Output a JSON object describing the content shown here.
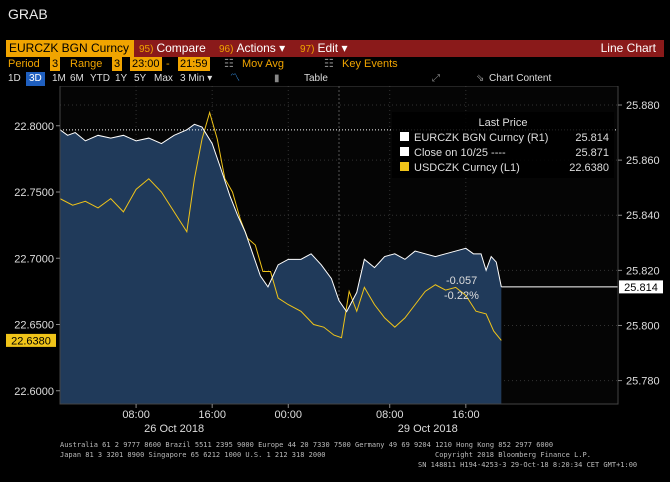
{
  "header": {
    "title": "GRAB"
  },
  "toolbar": {
    "ticker": "EURCZK BGN Curncy",
    "compare": {
      "num": "95)",
      "label": "Compare"
    },
    "actions": {
      "num": "96)",
      "label": "Actions ▾"
    },
    "edit": {
      "num": "97)",
      "label": "Edit ▾"
    },
    "view": "Line Chart"
  },
  "settings": {
    "period_label": "Period",
    "period_value": "3",
    "range_label": "Range",
    "range_value": "3",
    "range_start": "23:00",
    "range_sep": "-",
    "range_end": "21:59",
    "mov_avg": "Mov Avg",
    "key_events": "Key Events"
  },
  "timebar": {
    "spans": [
      "1D",
      "3D",
      "1M",
      "6M",
      "YTD",
      "1Y",
      "5Y",
      "Max"
    ],
    "selected": "3D",
    "interval": "3 Min ▾",
    "table": "Table",
    "chart_content": "Chart Content"
  },
  "legend": {
    "title": "Last Price",
    "rows": [
      {
        "label": "EURCZK BGN Curncy  (R1)",
        "value": "25.814",
        "color": "#ffffff"
      },
      {
        "label": "Close on 10/25 ----",
        "value": "25.871",
        "color": "#ffffff"
      },
      {
        "label": "USDCZK Curncy  (L1)",
        "value": "22.6380",
        "color": "#f0c419"
      }
    ]
  },
  "annotations": {
    "change": "-0.057",
    "change_pct": "-0.22%",
    "right_last": "25.814",
    "left_last": "22.6380"
  },
  "colors": {
    "eurczk": "#ffffff",
    "usdczk": "#f0c419",
    "area_fill": "#203a5a",
    "toolbar_bg": "#8a1a1a",
    "accent": "#f0a400"
  },
  "footer": {
    "line1": "Australia 61 2 9777 8600 Brazil 5511 2395 9000 Europe 44 20 7330 7500 Germany 49 69 9204 1210 Hong Kong 852 2977 6000",
    "line2a": "Japan 81 3 3201 8900         Singapore 65 6212 1000         U.S. 1 212 318 2000",
    "line2b": "Copyright 2018 Bloomberg Finance L.P.",
    "line3": "SN 148811 H194-4253-3 29-Oct-18   8:20:34 CET  GMT+1:00"
  },
  "chart_data": {
    "type": "line",
    "x_tick_labels": [
      "08:00",
      "16:00",
      "00:00",
      "08:00",
      "16:00"
    ],
    "x_date_labels": [
      "26 Oct 2018",
      "29 Oct 2018"
    ],
    "left_axis": {
      "ticks": [
        "22.6000",
        "22.6500",
        "22.7000",
        "22.7500",
        "22.8000"
      ],
      "range": [
        22.59,
        22.83
      ]
    },
    "right_axis": {
      "ticks": [
        "25.780",
        "25.800",
        "25.820",
        "25.840",
        "25.860",
        "25.880"
      ],
      "range": [
        25.7715,
        25.8869
      ]
    },
    "reference_line": {
      "name": "Close on 10/25",
      "value": 25.871
    },
    "series": [
      {
        "name": "EURCZK BGN Curncy",
        "axis": "right",
        "points": [
          [
            0,
            25.871
          ],
          [
            3,
            25.869
          ],
          [
            6,
            25.87
          ],
          [
            10,
            25.867
          ],
          [
            15,
            25.869
          ],
          [
            20,
            25.868
          ],
          [
            25,
            25.869
          ],
          [
            30,
            25.867
          ],
          [
            35,
            25.868
          ],
          [
            40,
            25.866
          ],
          [
            45,
            25.869
          ],
          [
            50,
            25.871
          ],
          [
            53,
            25.873
          ],
          [
            56,
            25.872
          ],
          [
            60,
            25.866
          ],
          [
            63,
            25.858
          ],
          [
            67,
            25.847
          ],
          [
            70,
            25.84
          ],
          [
            73,
            25.834
          ],
          [
            76,
            25.826
          ],
          [
            79,
            25.818
          ],
          [
            82,
            25.814
          ],
          [
            86,
            25.822
          ],
          [
            90,
            25.824
          ],
          [
            95,
            25.824
          ],
          [
            99,
            25.826
          ],
          [
            103,
            25.822
          ],
          [
            107,
            25.817
          ],
          [
            110,
            25.809
          ],
          [
            113,
            25.805
          ],
          [
            117,
            25.812
          ],
          [
            120,
            25.824
          ],
          [
            124,
            25.821
          ],
          [
            128,
            25.825
          ],
          [
            132,
            25.826
          ],
          [
            136,
            25.824
          ],
          [
            140,
            25.827
          ],
          [
            144,
            25.826
          ],
          [
            148,
            25.825
          ],
          [
            152,
            25.826
          ],
          [
            156,
            25.827
          ],
          [
            160,
            25.828
          ],
          [
            163,
            25.826
          ],
          [
            166,
            25.826
          ],
          [
            168,
            25.82
          ],
          [
            170,
            25.825
          ],
          [
            172,
            25.823
          ],
          [
            174,
            25.814
          ]
        ]
      },
      {
        "name": "USDCZK Curncy",
        "axis": "left",
        "points": [
          [
            0,
            22.745
          ],
          [
            5,
            22.74
          ],
          [
            10,
            22.743
          ],
          [
            15,
            22.738
          ],
          [
            20,
            22.745
          ],
          [
            25,
            22.735
          ],
          [
            30,
            22.752
          ],
          [
            35,
            22.76
          ],
          [
            40,
            22.75
          ],
          [
            45,
            22.735
          ],
          [
            50,
            22.72
          ],
          [
            53,
            22.76
          ],
          [
            56,
            22.79
          ],
          [
            59,
            22.81
          ],
          [
            62,
            22.79
          ],
          [
            65,
            22.76
          ],
          [
            68,
            22.75
          ],
          [
            71,
            22.73
          ],
          [
            74,
            22.715
          ],
          [
            77,
            22.71
          ],
          [
            80,
            22.69
          ],
          [
            83,
            22.69
          ],
          [
            86,
            22.67
          ],
          [
            90,
            22.665
          ],
          [
            95,
            22.66
          ],
          [
            100,
            22.65
          ],
          [
            104,
            22.648
          ],
          [
            108,
            22.642
          ],
          [
            111,
            22.64
          ],
          [
            114,
            22.675
          ],
          [
            117,
            22.66
          ],
          [
            120,
            22.678
          ],
          [
            124,
            22.665
          ],
          [
            128,
            22.655
          ],
          [
            132,
            22.648
          ],
          [
            136,
            22.655
          ],
          [
            140,
            22.665
          ],
          [
            144,
            22.675
          ],
          [
            148,
            22.68
          ],
          [
            152,
            22.676
          ],
          [
            156,
            22.678
          ],
          [
            160,
            22.672
          ],
          [
            164,
            22.66
          ],
          [
            168,
            22.658
          ],
          [
            171,
            22.645
          ],
          [
            174,
            22.638
          ]
        ]
      }
    ],
    "x_domain": [
      0,
      220
    ]
  }
}
